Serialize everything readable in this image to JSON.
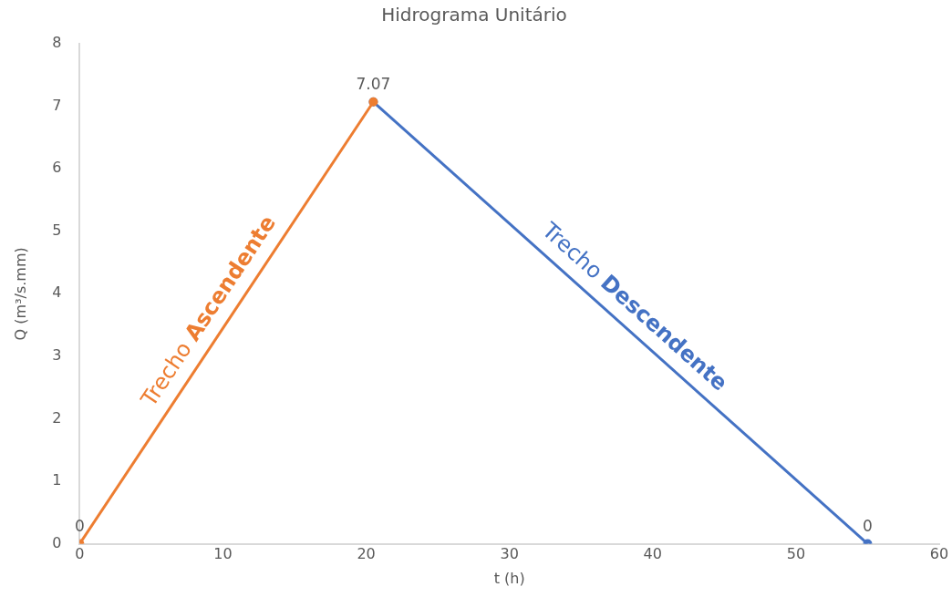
{
  "chart_data": {
    "type": "line",
    "title": "Hidrograma Unitário",
    "xlabel": "t (h)",
    "ylabel": "Q (m³/s.mm)",
    "xlim": [
      0,
      60
    ],
    "xticks": [
      0,
      10,
      20,
      30,
      40,
      50,
      60
    ],
    "ylim": [
      0,
      8
    ],
    "yticks": [
      0,
      1,
      2,
      3,
      4,
      5,
      6,
      7,
      8
    ],
    "grid": false,
    "legend": false,
    "marker": "circle",
    "line_style": "solid",
    "series": [
      {
        "name": "Trecho Ascendente",
        "color": "#ed7d31",
        "x": [
          0,
          20.5
        ],
        "values": [
          0,
          7.07
        ],
        "value_labels": [
          "0",
          "7.07"
        ]
      },
      {
        "name": "Trecho Descendente",
        "color": "#4472c4",
        "x": [
          20.5,
          55
        ],
        "values": [
          7.07,
          0
        ],
        "value_labels": [
          null,
          "0"
        ]
      }
    ]
  }
}
